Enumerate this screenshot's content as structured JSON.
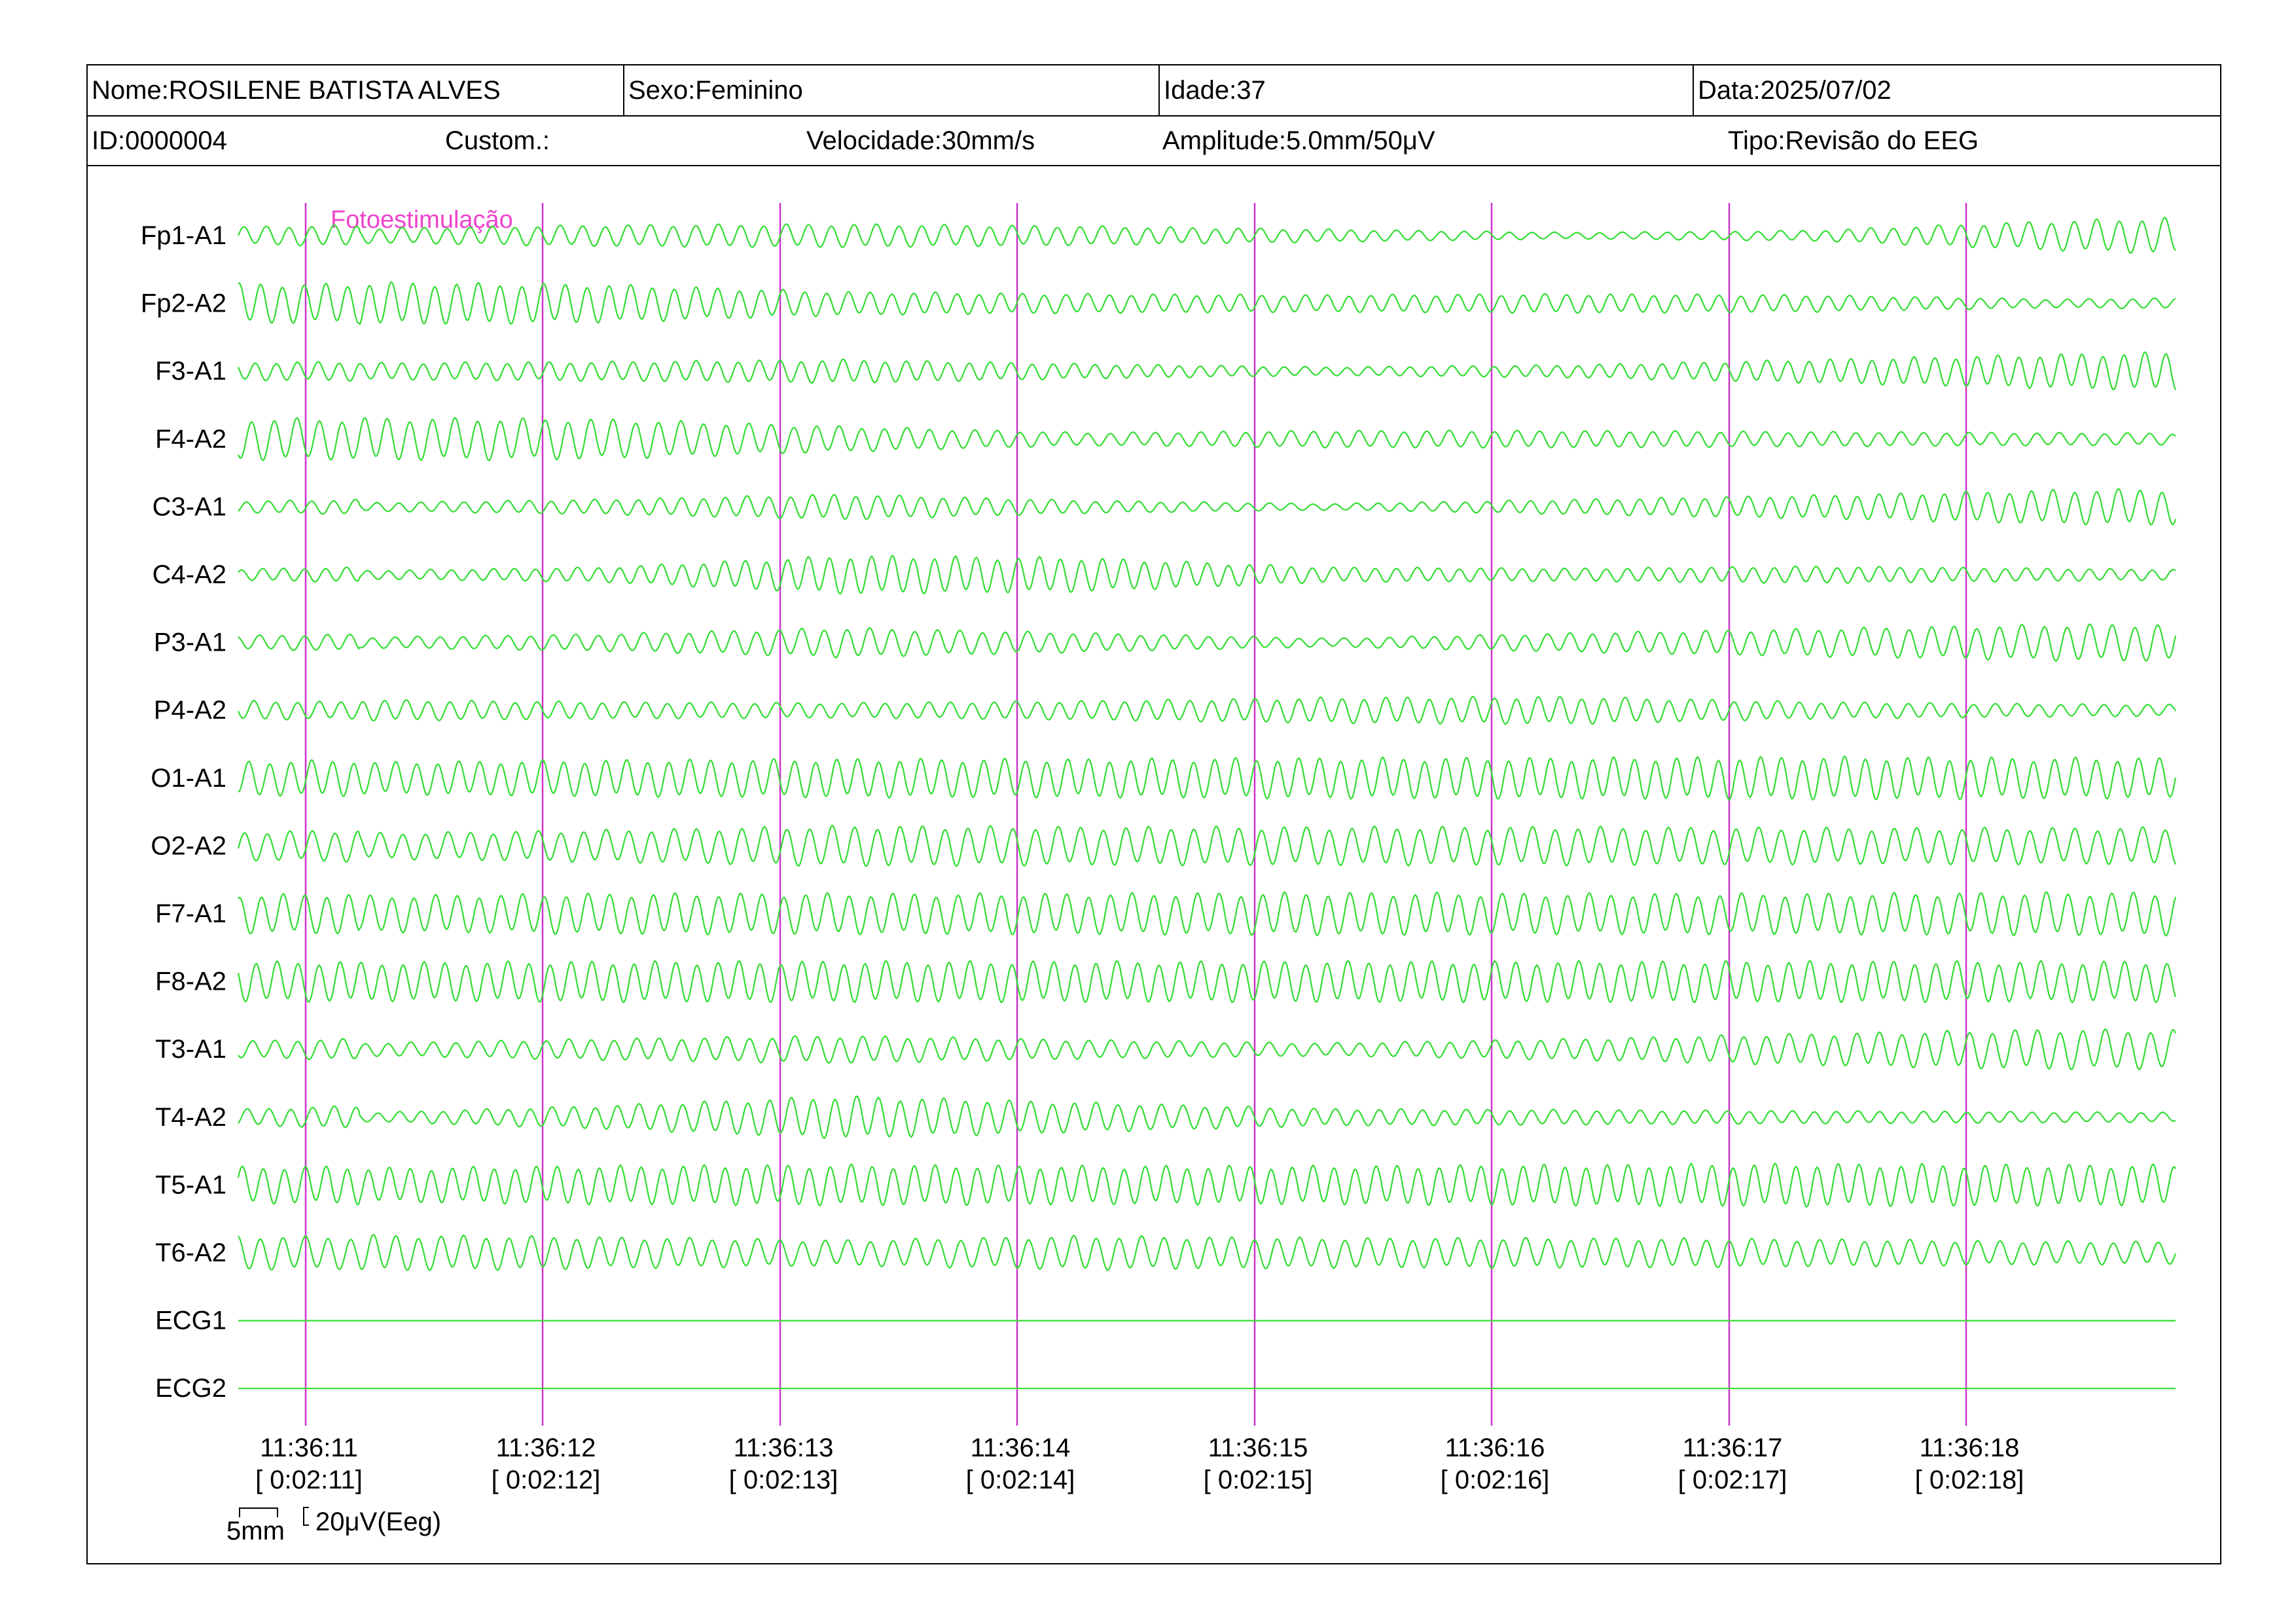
{
  "header": {
    "nome": "Nome:ROSILENE BATISTA ALVES",
    "sexo": "Sexo:Feminino",
    "idade": "Idade:37",
    "data": "Data:2025/07/02",
    "id": "ID:0000004",
    "custom": "Custom.:",
    "velocidade": "Velocidade:30mm/s",
    "amplitude": "Amplitude:5.0mm/50μV",
    "tipo": "Tipo:Revisão do EEG"
  },
  "colors": {
    "trace": "#33dd33",
    "marker": "#cc33cc",
    "annotation": "#ee44cc"
  },
  "chart_data": {
    "type": "line",
    "annotation": "Fotoestimulação",
    "channels": [
      {
        "name": "Fp1-A1",
        "amp": [
          0.35,
          0.5,
          0.55,
          0.45,
          0.3,
          0.15,
          0.25,
          0.7,
          1.0
        ]
      },
      {
        "name": "Fp2-A2",
        "amp": [
          1.0,
          0.9,
          0.55,
          0.45,
          0.4,
          0.45,
          0.4,
          0.2,
          0.3
        ]
      },
      {
        "name": "F3-A1",
        "amp": [
          0.4,
          0.45,
          0.55,
          0.35,
          0.2,
          0.3,
          0.55,
          0.8,
          1.0
        ]
      },
      {
        "name": "F4-A2",
        "amp": [
          1.0,
          0.95,
          0.6,
          0.3,
          0.4,
          0.4,
          0.35,
          0.3,
          0.25
        ]
      },
      {
        "name": "C3-A1",
        "amp": [
          0.2,
          0.35,
          0.6,
          0.3,
          0.15,
          0.35,
          0.55,
          0.8,
          0.9
        ]
      },
      {
        "name": "C4-A2",
        "amp": [
          0.2,
          0.35,
          0.9,
          0.8,
          0.35,
          0.3,
          0.4,
          0.3,
          0.2
        ]
      },
      {
        "name": "P3-A1",
        "amp": [
          0.25,
          0.4,
          0.7,
          0.45,
          0.2,
          0.45,
          0.65,
          0.85,
          0.9
        ]
      },
      {
        "name": "P4-A2",
        "amp": [
          0.5,
          0.4,
          0.35,
          0.45,
          0.6,
          0.65,
          0.4,
          0.3,
          0.25
        ]
      },
      {
        "name": "O1-A1",
        "amp": [
          0.75,
          0.85,
          0.9,
          0.9,
          0.95,
          0.95,
          1.0,
          0.95,
          0.95
        ]
      },
      {
        "name": "O2-A2",
        "amp": [
          0.6,
          0.75,
          0.95,
          0.9,
          0.9,
          0.9,
          0.85,
          0.85,
          0.9
        ]
      },
      {
        "name": "F7-A1",
        "amp": [
          0.85,
          0.95,
          0.95,
          0.95,
          1.0,
          0.95,
          0.95,
          1.0,
          1.0
        ]
      },
      {
        "name": "F8-A2",
        "amp": [
          0.9,
          0.95,
          0.95,
          0.95,
          0.95,
          0.95,
          0.95,
          0.95,
          0.95
        ]
      },
      {
        "name": "T3-A1",
        "amp": [
          0.3,
          0.5,
          0.65,
          0.45,
          0.3,
          0.5,
          0.75,
          0.95,
          0.85
        ]
      },
      {
        "name": "T4-A2",
        "amp": [
          0.2,
          0.55,
          1.0,
          0.7,
          0.4,
          0.35,
          0.3,
          0.25,
          0.2
        ]
      },
      {
        "name": "T5-A1",
        "amp": [
          0.8,
          0.9,
          0.95,
          0.9,
          0.9,
          0.95,
          1.0,
          0.95,
          0.95
        ]
      },
      {
        "name": "T6-A2",
        "amp": [
          0.85,
          0.75,
          0.6,
          0.8,
          0.7,
          0.7,
          0.65,
          0.55,
          0.5
        ]
      },
      {
        "name": "ECG1",
        "amp": [
          0,
          0,
          0,
          0,
          0,
          0,
          0,
          0,
          0
        ]
      },
      {
        "name": "ECG2",
        "amp": [
          0,
          0,
          0,
          0,
          0,
          0,
          0,
          0,
          0
        ]
      }
    ],
    "time_labels": [
      {
        "clock": "11:36:11",
        "elapsed": "[ 0:02:11]"
      },
      {
        "clock": "11:36:12",
        "elapsed": "[ 0:02:12]"
      },
      {
        "clock": "11:36:13",
        "elapsed": "[ 0:02:13]"
      },
      {
        "clock": "11:36:14",
        "elapsed": "[ 0:02:14]"
      },
      {
        "clock": "11:36:15",
        "elapsed": "[ 0:02:15]"
      },
      {
        "clock": "11:36:16",
        "elapsed": "[ 0:02:16]"
      },
      {
        "clock": "11:36:17",
        "elapsed": "[ 0:02:17]"
      },
      {
        "clock": "11:36:18",
        "elapsed": "[ 0:02:18]"
      }
    ],
    "scale": {
      "time": "5mm",
      "amplitude": "20μV(Eeg)"
    }
  }
}
